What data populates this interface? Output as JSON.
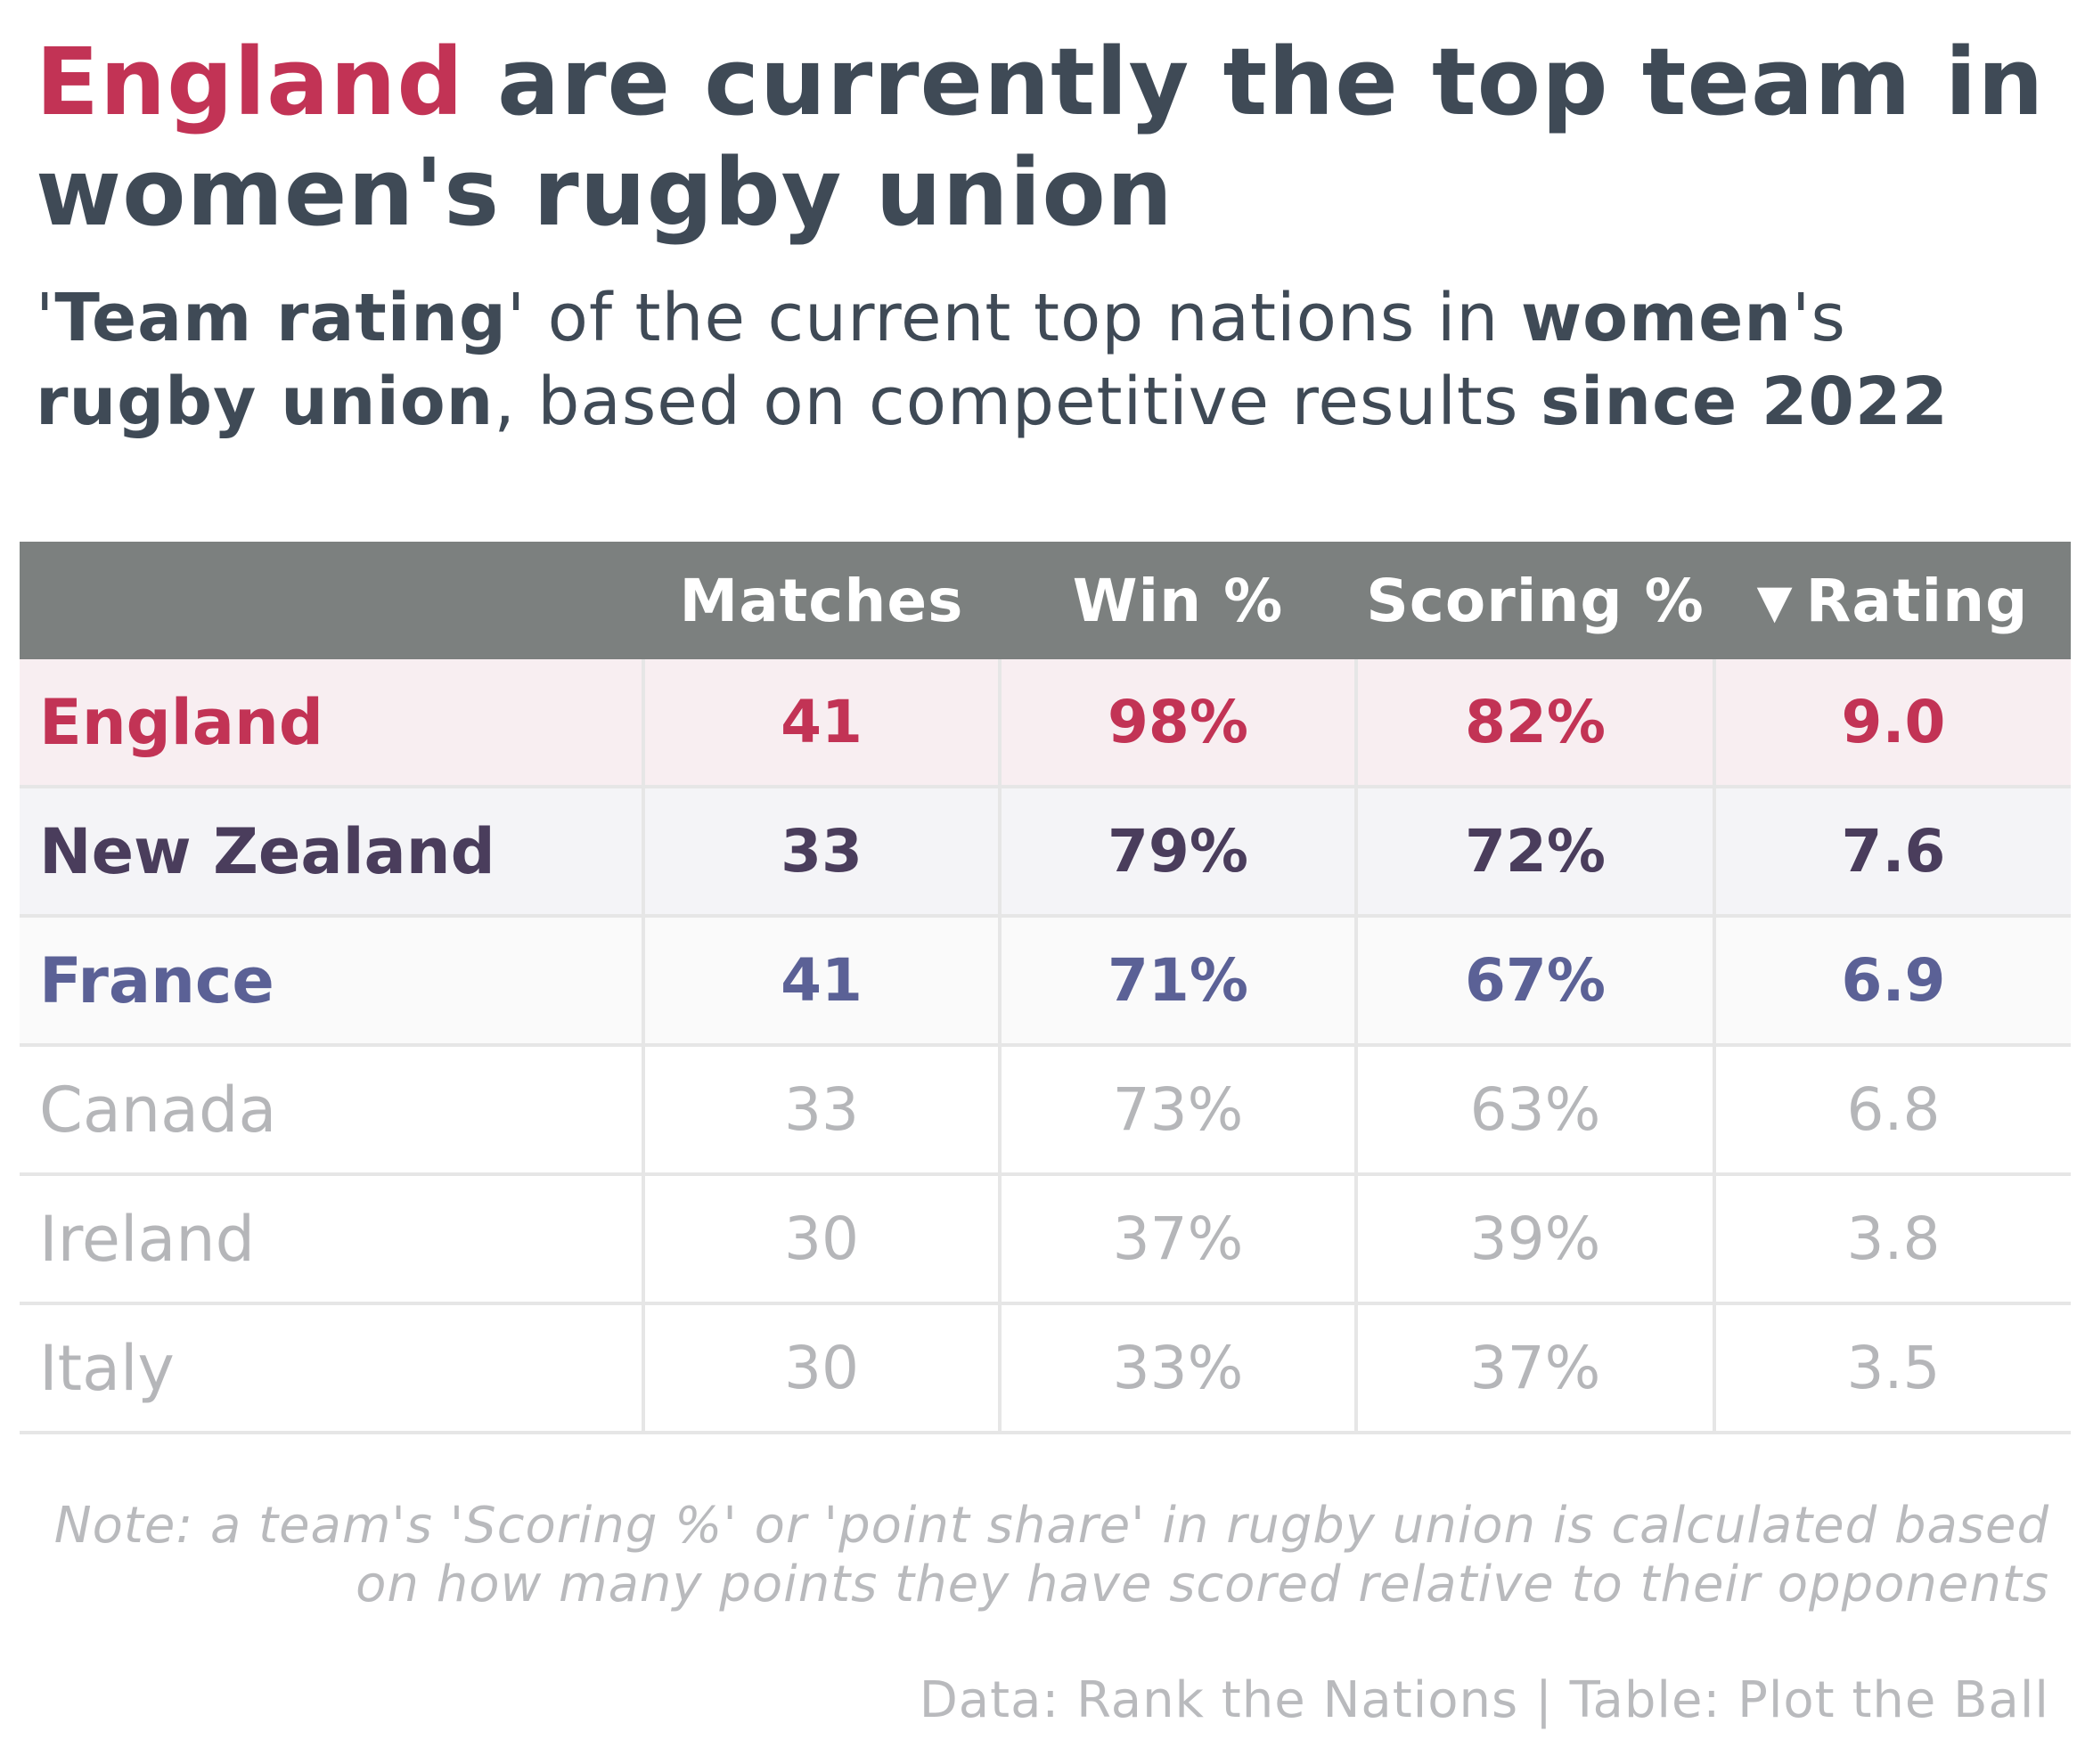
{
  "title": {
    "highlight": "England",
    "rest": " are currently the top team in women's rugby union"
  },
  "subtitle": {
    "p1": "'",
    "b1": "Team rating",
    "p2": "' of the current top nations in ",
    "b2": "women",
    "p3": "'s ",
    "b3": "rugby union",
    "p4": ", based on competitive results ",
    "b4": "since 2022"
  },
  "colors": {
    "england": "#c23355",
    "new_zealand": "#4a3d5c",
    "france": "#5b6196",
    "muted": "#b5b6b9",
    "header_bg": "#7c807f",
    "row_england_bg": "#f8eef1",
    "row_nz_bg": "#f4f4f7",
    "row_france_bg": "#fafafa"
  },
  "chart_data": {
    "type": "table",
    "columns": [
      "",
      "Matches",
      "Win %",
      "Scoring %",
      "Rating"
    ],
    "sort_indicator": "▼",
    "sorted_by": "Rating",
    "rows": [
      {
        "team": "England",
        "matches": "41",
        "win_pct": "98%",
        "scoring_pct": "82%",
        "rating": "9.0",
        "highlight": true,
        "color_key": "england"
      },
      {
        "team": "New Zealand",
        "matches": "33",
        "win_pct": "79%",
        "scoring_pct": "72%",
        "rating": "7.6",
        "highlight": true,
        "color_key": "new_zealand"
      },
      {
        "team": "France",
        "matches": "41",
        "win_pct": "71%",
        "scoring_pct": "67%",
        "rating": "6.9",
        "highlight": true,
        "color_key": "france"
      },
      {
        "team": "Canada",
        "matches": "33",
        "win_pct": "73%",
        "scoring_pct": "63%",
        "rating": "6.8",
        "highlight": false,
        "color_key": "muted"
      },
      {
        "team": "Ireland",
        "matches": "30",
        "win_pct": "37%",
        "scoring_pct": "39%",
        "rating": "3.8",
        "highlight": false,
        "color_key": "muted"
      },
      {
        "team": "Italy",
        "matches": "30",
        "win_pct": "33%",
        "scoring_pct": "37%",
        "rating": "3.5",
        "highlight": false,
        "color_key": "muted"
      }
    ]
  },
  "note": "Note: a team's 'Scoring %' or 'point share' in rugby union is calculated based on how many points they have scored relative to their opponents",
  "credit": "Data: Rank the Nations | Table: Plot the Ball"
}
